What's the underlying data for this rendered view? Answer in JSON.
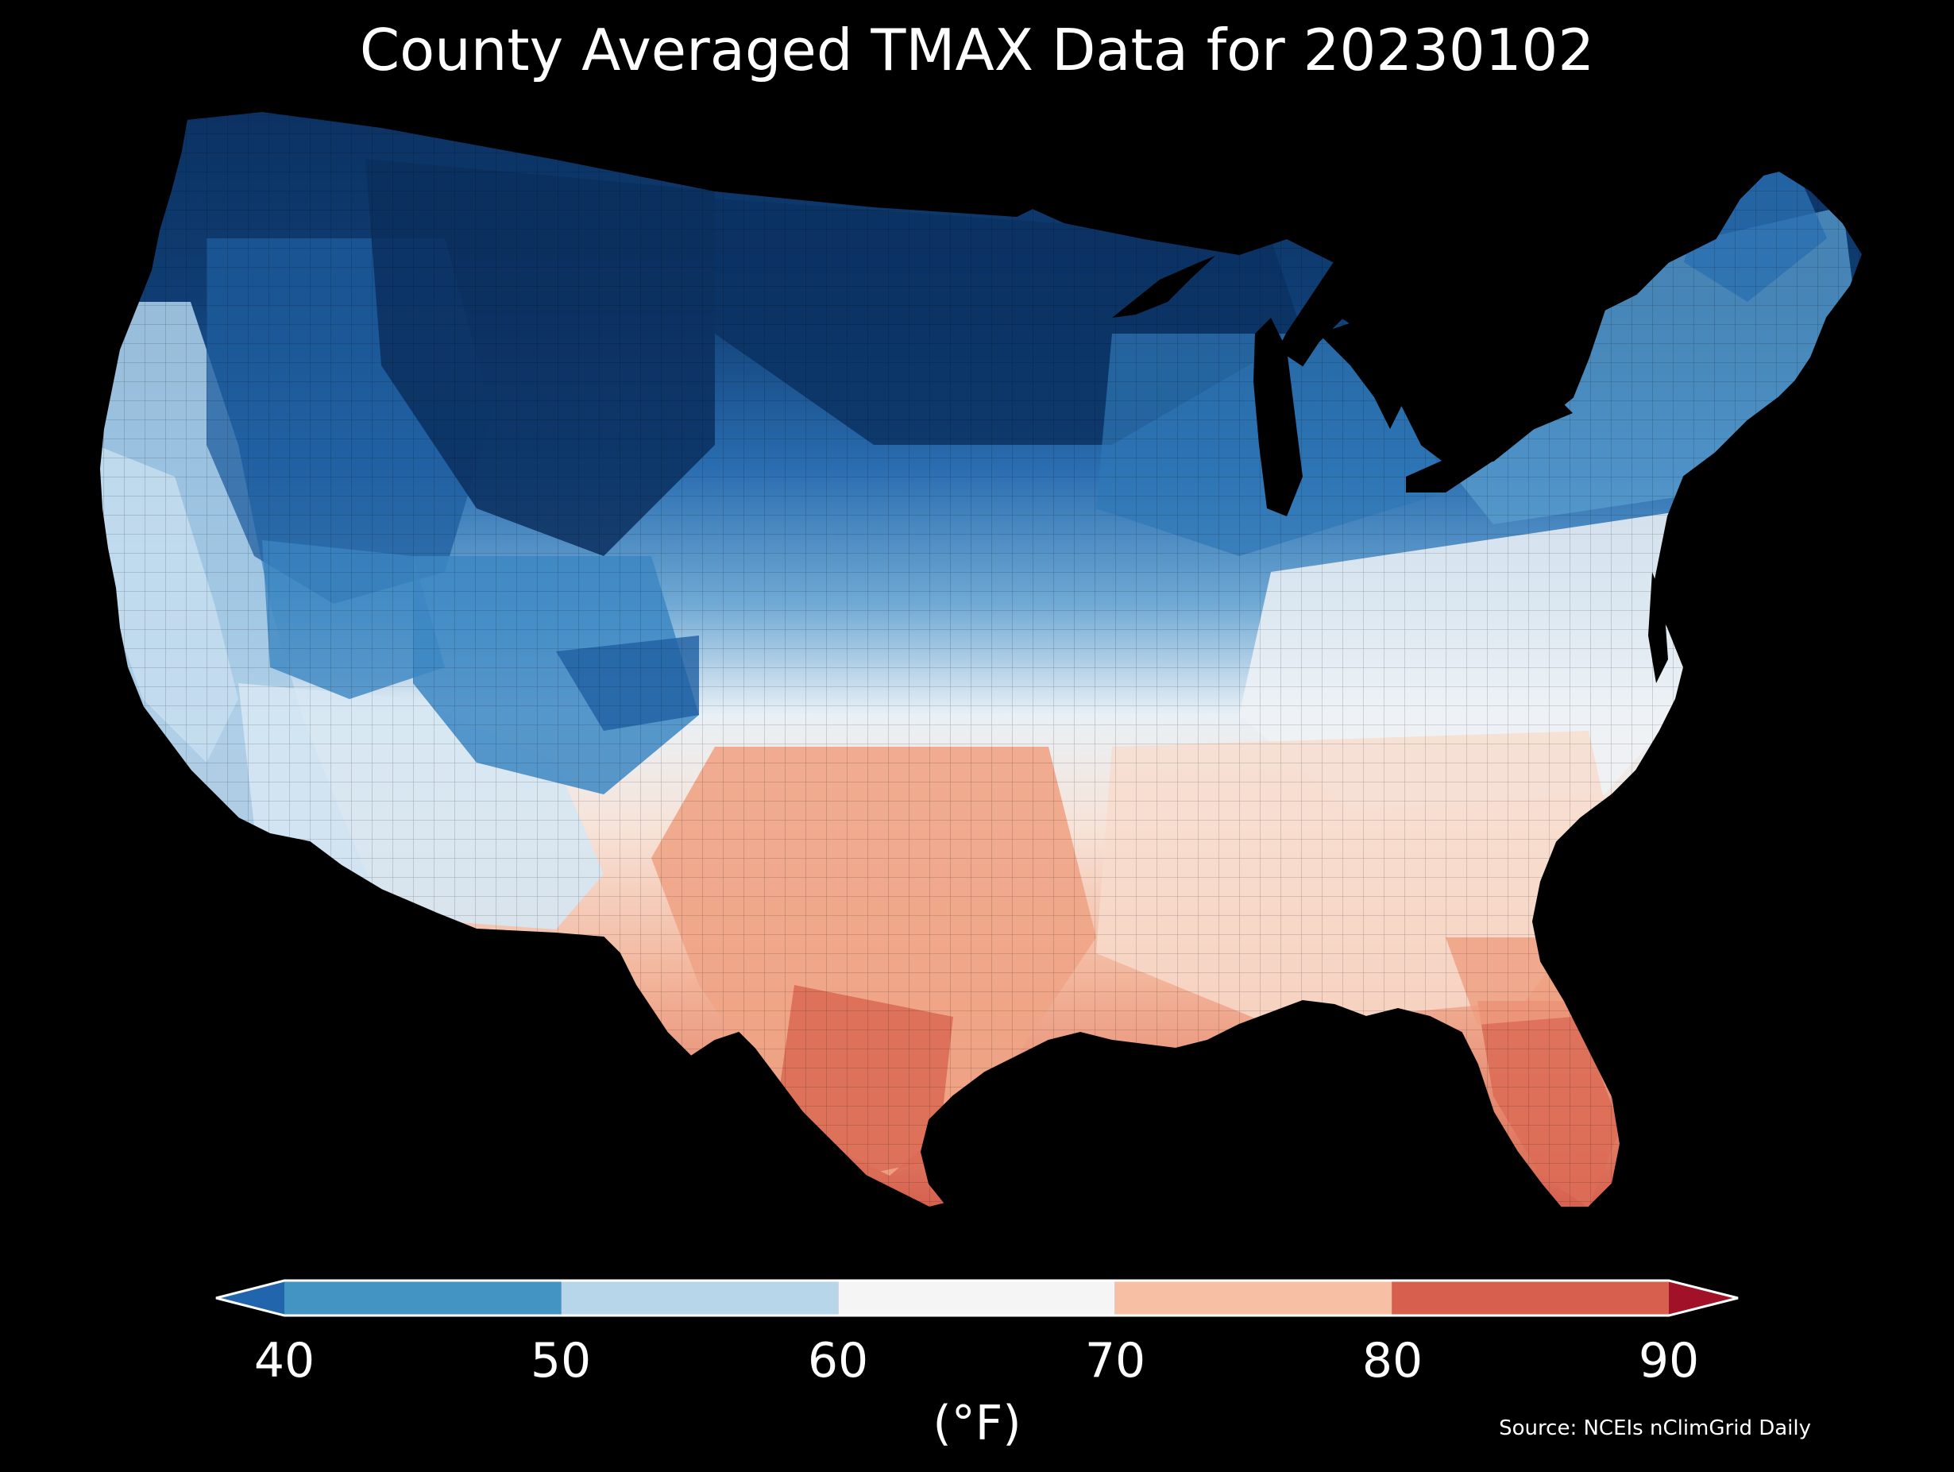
{
  "title": "County Averaged TMAX Data for 20230102",
  "legend": {
    "unit": "(°F)",
    "ticks": [
      "40",
      "50",
      "60",
      "70",
      "80",
      "90"
    ],
    "bins": [
      {
        "from": null,
        "to": 40,
        "color": "#2166ac",
        "label": "< 40 (extend)"
      },
      {
        "from": 40,
        "to": 50,
        "color": "#4393c3"
      },
      {
        "from": 50,
        "to": 60,
        "color": "#b7d6ea"
      },
      {
        "from": 60,
        "to": 70,
        "color": "#f5f5f5"
      },
      {
        "from": 70,
        "to": 80,
        "color": "#f7bfa3"
      },
      {
        "from": 80,
        "to": 90,
        "color": "#d6604d"
      },
      {
        "from": 90,
        "to": null,
        "color": "#a11228",
        "label": "> 90 (extend)"
      }
    ]
  },
  "source": "Source: NCEIs nClimGrid Daily",
  "map": {
    "region": "Contiguous United States",
    "background_color": "#000000",
    "regional_tmax_pattern": [
      {
        "region": "Northern Rockies / Northern Plains",
        "tmax_range_f": "< 40",
        "color": "#0b3161"
      },
      {
        "region": "Great Basin / Central Rockies",
        "tmax_range_f": "40-50",
        "color": "#2b6cb0"
      },
      {
        "region": "Pacific Coast",
        "tmax_range_f": "50-60",
        "color": "#a9cde6"
      },
      {
        "region": "Desert Southwest",
        "tmax_range_f": "50-65",
        "color": "#d8e8f3"
      },
      {
        "region": "Midwest / Great Lakes",
        "tmax_range_f": "40-55",
        "color": "#4a90c8"
      },
      {
        "region": "Northeast",
        "tmax_range_f": "45-60",
        "color": "#8fbfe0"
      },
      {
        "region": "Mid-Atlantic / Ohio Valley",
        "tmax_range_f": "55-70",
        "color": "#eef2f6"
      },
      {
        "region": "Southeast",
        "tmax_range_f": "65-75",
        "color": "#f8e0d4"
      },
      {
        "region": "Texas / Gulf Coast",
        "tmax_range_f": "70-85",
        "color": "#f1a98a"
      },
      {
        "region": "South Texas / South Florida",
        "tmax_range_f": "80-90",
        "color": "#d9644f"
      }
    ]
  }
}
